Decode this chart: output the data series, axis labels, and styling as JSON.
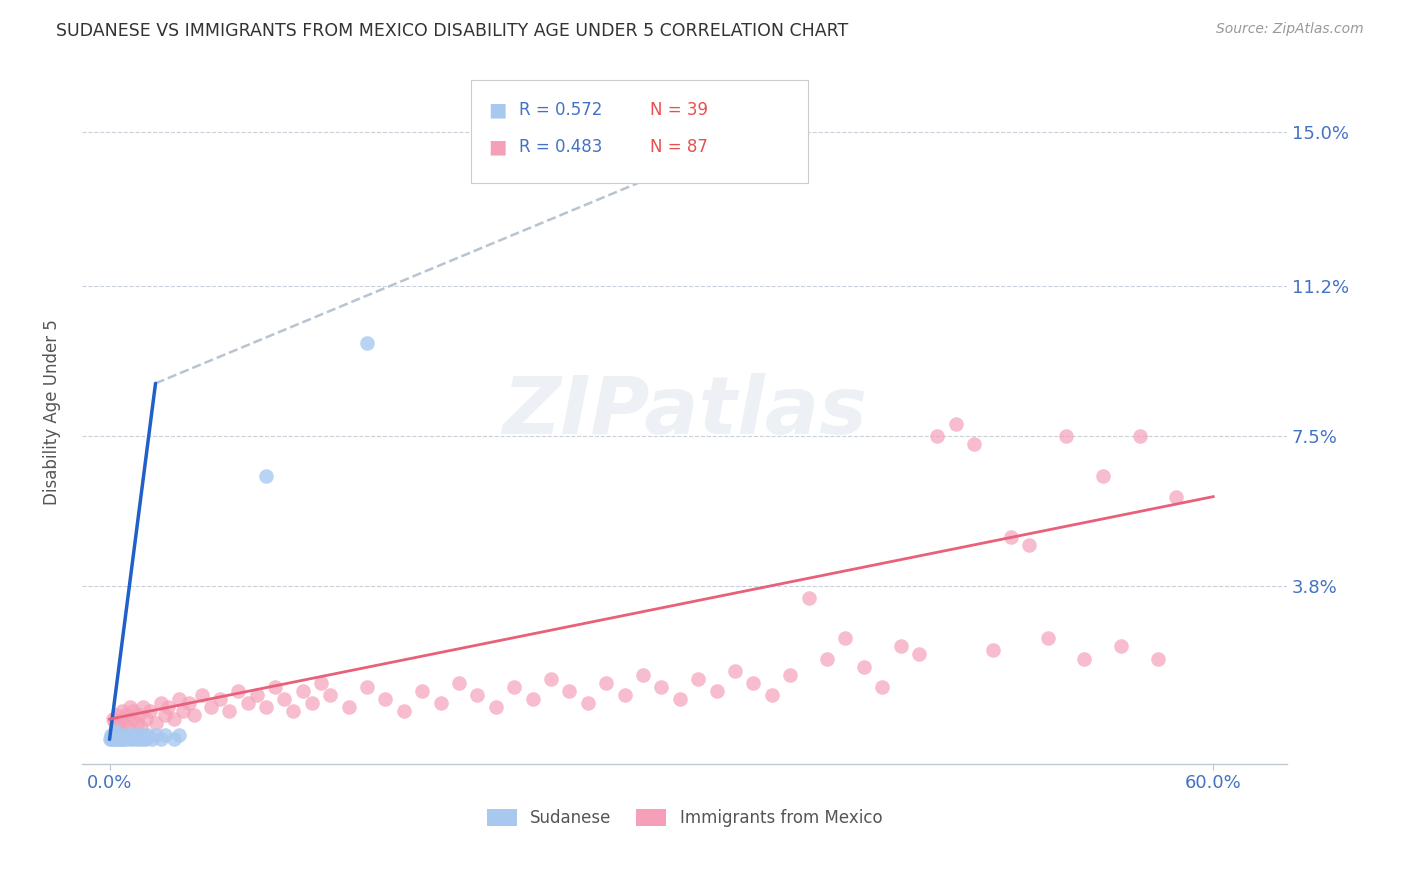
{
  "title": "SUDANESE VS IMMIGRANTS FROM MEXICO DISABILITY AGE UNDER 5 CORRELATION CHART",
  "source": "Source: ZipAtlas.com",
  "ylabel_label": "Disability Age Under 5",
  "ylabel_tick_vals": [
    0.15,
    0.112,
    0.075,
    0.038
  ],
  "ylabel_tick_labels": [
    "15.0%",
    "11.2%",
    "7.5%",
    "3.8%"
  ],
  "xlabel_tick_vals": [
    0.0,
    0.6
  ],
  "xlabel_tick_labels": [
    "0.0%",
    "60.0%"
  ],
  "xlim": [
    -0.015,
    0.64
  ],
  "ylim": [
    -0.006,
    0.168
  ],
  "sudanese_color": "#a8c8f0",
  "mexico_color": "#f5a0b8",
  "sudanese_line_color": "#2060c8",
  "mexico_line_color": "#e8607a",
  "dashed_line_color": "#b8c4d0",
  "watermark": "ZIPatlas",
  "sudanese_x": [
    0.0,
    0.001,
    0.001,
    0.002,
    0.002,
    0.003,
    0.003,
    0.003,
    0.004,
    0.004,
    0.005,
    0.005,
    0.006,
    0.006,
    0.007,
    0.007,
    0.008,
    0.009,
    0.01,
    0.011,
    0.012,
    0.013,
    0.014,
    0.015,
    0.015,
    0.016,
    0.017,
    0.018,
    0.019,
    0.02,
    0.021,
    0.023,
    0.025,
    0.028,
    0.03,
    0.035,
    0.038,
    0.085,
    0.14
  ],
  "sudanese_y": [
    0.0,
    0.0,
    0.001,
    0.0,
    0.001,
    0.0,
    0.001,
    0.002,
    0.0,
    0.001,
    0.0,
    0.001,
    0.0,
    0.001,
    0.0,
    0.001,
    0.0,
    0.0,
    0.001,
    0.0,
    0.001,
    0.0,
    0.001,
    0.0,
    0.001,
    0.0,
    0.001,
    0.0,
    0.001,
    0.0,
    0.001,
    0.0,
    0.001,
    0.0,
    0.001,
    0.0,
    0.001,
    0.065,
    0.098
  ],
  "mexico_x": [
    0.002,
    0.003,
    0.004,
    0.005,
    0.006,
    0.007,
    0.008,
    0.009,
    0.01,
    0.011,
    0.012,
    0.013,
    0.015,
    0.016,
    0.017,
    0.018,
    0.02,
    0.022,
    0.025,
    0.028,
    0.03,
    0.032,
    0.035,
    0.038,
    0.04,
    0.043,
    0.046,
    0.05,
    0.055,
    0.06,
    0.065,
    0.07,
    0.075,
    0.08,
    0.085,
    0.09,
    0.095,
    0.1,
    0.105,
    0.11,
    0.115,
    0.12,
    0.13,
    0.14,
    0.15,
    0.16,
    0.17,
    0.18,
    0.19,
    0.2,
    0.21,
    0.22,
    0.23,
    0.24,
    0.25,
    0.26,
    0.27,
    0.28,
    0.29,
    0.3,
    0.31,
    0.32,
    0.33,
    0.34,
    0.35,
    0.36,
    0.37,
    0.38,
    0.39,
    0.4,
    0.41,
    0.42,
    0.43,
    0.44,
    0.45,
    0.46,
    0.47,
    0.48,
    0.49,
    0.5,
    0.51,
    0.52,
    0.53,
    0.54,
    0.55,
    0.56,
    0.57,
    0.58
  ],
  "mexico_y": [
    0.005,
    0.004,
    0.006,
    0.003,
    0.005,
    0.007,
    0.004,
    0.006,
    0.003,
    0.008,
    0.005,
    0.007,
    0.004,
    0.006,
    0.003,
    0.008,
    0.005,
    0.007,
    0.004,
    0.009,
    0.006,
    0.008,
    0.005,
    0.01,
    0.007,
    0.009,
    0.006,
    0.011,
    0.008,
    0.01,
    0.007,
    0.012,
    0.009,
    0.011,
    0.008,
    0.013,
    0.01,
    0.007,
    0.012,
    0.009,
    0.014,
    0.011,
    0.008,
    0.013,
    0.01,
    0.007,
    0.012,
    0.009,
    0.014,
    0.011,
    0.008,
    0.013,
    0.01,
    0.015,
    0.012,
    0.009,
    0.014,
    0.011,
    0.016,
    0.013,
    0.01,
    0.015,
    0.012,
    0.017,
    0.014,
    0.011,
    0.016,
    0.035,
    0.02,
    0.025,
    0.018,
    0.013,
    0.023,
    0.021,
    0.075,
    0.078,
    0.073,
    0.022,
    0.05,
    0.048,
    0.025,
    0.075,
    0.02,
    0.065,
    0.023,
    0.075,
    0.02,
    0.06
  ],
  "sudanese_line_x": [
    0.0,
    0.025
  ],
  "sudanese_line_y": [
    0.0,
    0.088
  ],
  "dashed_line_x": [
    0.025,
    0.38
  ],
  "dashed_line_y": [
    0.088,
    0.155
  ],
  "mexico_line_x": [
    0.0,
    0.6
  ],
  "mexico_line_y": [
    0.005,
    0.06
  ]
}
